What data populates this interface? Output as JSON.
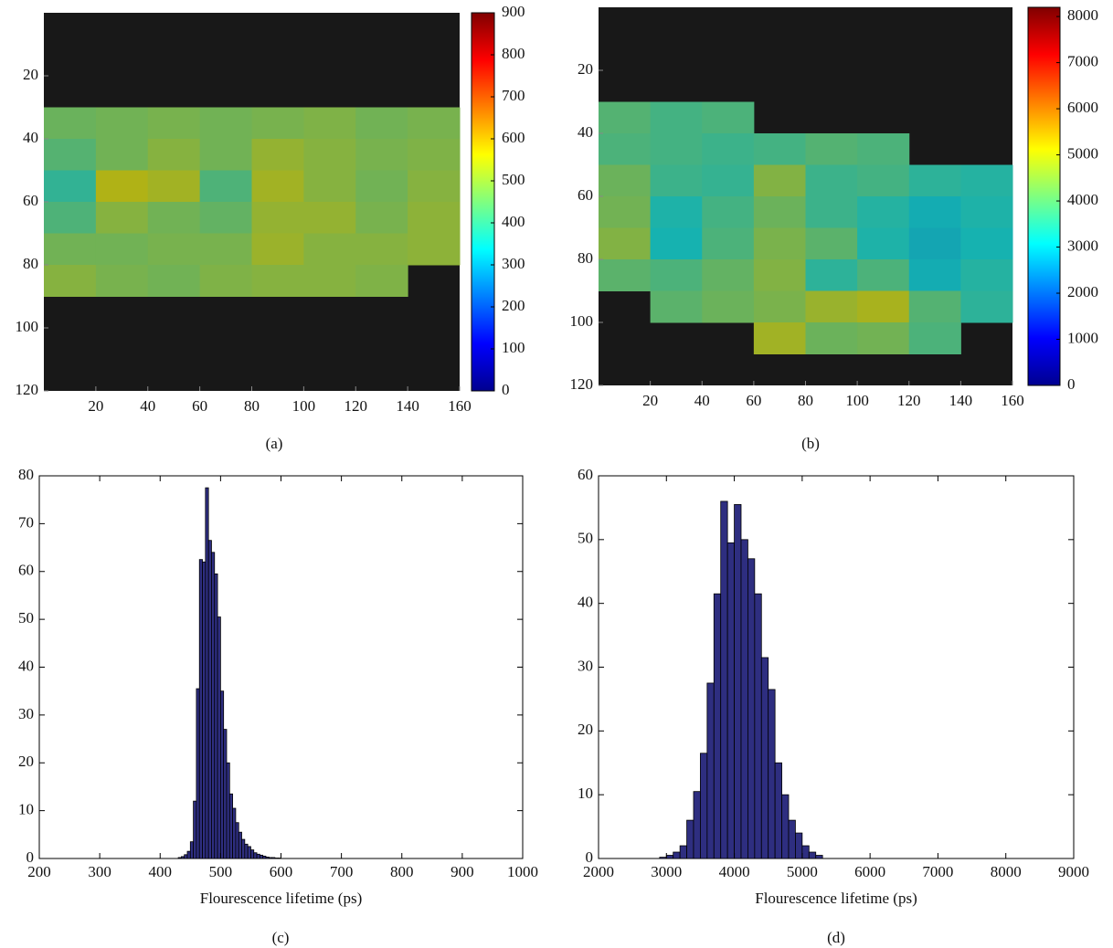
{
  "chart_data": [
    {
      "type": "heatmap",
      "caption": "(a)",
      "xbins": [
        0,
        20,
        40,
        60,
        80,
        100,
        120,
        140,
        160
      ],
      "ybins": [
        0,
        10,
        20,
        30,
        40,
        50,
        60,
        70,
        80,
        90,
        100,
        110,
        120
      ],
      "z": [
        [
          null,
          null,
          null,
          null,
          null,
          null,
          null,
          null
        ],
        [
          null,
          null,
          null,
          null,
          null,
          null,
          null,
          null
        ],
        [
          null,
          null,
          null,
          null,
          null,
          null,
          null,
          null
        ],
        [
          460,
          470,
          480,
          470,
          480,
          490,
          470,
          480
        ],
        [
          430,
          470,
          500,
          470,
          520,
          500,
          480,
          490
        ],
        [
          380,
          560,
          540,
          420,
          540,
          500,
          470,
          500
        ],
        [
          420,
          500,
          470,
          450,
          520,
          520,
          480,
          510
        ],
        [
          470,
          470,
          480,
          480,
          530,
          500,
          500,
          510
        ],
        [
          500,
          480,
          470,
          490,
          500,
          500,
          490,
          null
        ],
        [
          null,
          null,
          null,
          null,
          null,
          null,
          null,
          null
        ],
        [
          null,
          null,
          null,
          null,
          null,
          null,
          null,
          null
        ],
        [
          null,
          null,
          null,
          null,
          null,
          null,
          null,
          null
        ]
      ],
      "xlim": [
        0,
        160
      ],
      "xticks": [
        20,
        40,
        60,
        80,
        100,
        120,
        140,
        160
      ],
      "ylim": [
        0,
        120
      ],
      "yticks": [
        20,
        40,
        60,
        80,
        100,
        120
      ],
      "yreverse": true,
      "clim": [
        0,
        900
      ],
      "cticks": [
        0,
        100,
        200,
        300,
        400,
        500,
        600,
        700,
        800,
        900
      ],
      "colormap": "jet"
    },
    {
      "type": "heatmap",
      "caption": "(b)",
      "xbins": [
        0,
        20,
        40,
        60,
        80,
        100,
        120,
        140,
        160
      ],
      "ybins": [
        0,
        10,
        20,
        30,
        40,
        50,
        60,
        70,
        80,
        90,
        100,
        110,
        120
      ],
      "z": [
        [
          null,
          null,
          null,
          null,
          null,
          null,
          null,
          null
        ],
        [
          null,
          null,
          null,
          null,
          null,
          null,
          null,
          null
        ],
        [
          null,
          null,
          null,
          null,
          null,
          null,
          null,
          null
        ],
        [
          3900,
          3700,
          3800,
          null,
          null,
          null,
          null,
          null
        ],
        [
          3800,
          3700,
          3600,
          3700,
          3900,
          3800,
          null,
          null
        ],
        [
          4200,
          3600,
          3500,
          4500,
          3600,
          3700,
          3400,
          3300
        ],
        [
          4300,
          3200,
          3700,
          4200,
          3600,
          3300,
          3000,
          3200
        ],
        [
          4500,
          3100,
          3800,
          4400,
          4000,
          3200,
          2900,
          3100
        ],
        [
          4000,
          3800,
          4100,
          4500,
          3400,
          3800,
          3000,
          3300
        ],
        [
          null,
          4000,
          4200,
          4400,
          4800,
          5000,
          3900,
          3400
        ],
        [
          null,
          null,
          null,
          4900,
          4200,
          4300,
          3800,
          null
        ],
        [
          null,
          null,
          null,
          null,
          null,
          null,
          null,
          null
        ]
      ],
      "xlim": [
        0,
        160
      ],
      "xticks": [
        20,
        40,
        60,
        80,
        100,
        120,
        140,
        160
      ],
      "ylim": [
        0,
        120
      ],
      "yticks": [
        20,
        40,
        60,
        80,
        100,
        120
      ],
      "yreverse": true,
      "clim": [
        0,
        8200
      ],
      "cticks": [
        0,
        1000,
        2000,
        3000,
        4000,
        5000,
        6000,
        7000,
        8000
      ],
      "colormap": "jet"
    },
    {
      "type": "histogram",
      "caption": "(c)",
      "xlabel": "Flourescence lifetime (ps)",
      "color": "#2e2e80",
      "bins": [
        430,
        435,
        440,
        445,
        450,
        455,
        460,
        465,
        470,
        475,
        480,
        485,
        490,
        495,
        500,
        505,
        510,
        515,
        520,
        525,
        530,
        535,
        540,
        545,
        550,
        555,
        560,
        565,
        570,
        575,
        580,
        585,
        590,
        595,
        600
      ],
      "values": [
        0.2,
        0.4,
        0.8,
        1.5,
        3.5,
        12,
        35.5,
        62.5,
        62,
        77.5,
        66.5,
        64,
        59.5,
        50.5,
        35,
        27,
        20,
        13.5,
        10.5,
        7.5,
        5.5,
        4,
        3,
        2.5,
        1.8,
        1.2,
        0.9,
        0.7,
        0.5,
        0.3,
        0.2,
        0.2,
        0.1,
        0.1
      ],
      "xlim": [
        200,
        1000
      ],
      "xticks": [
        200,
        300,
        400,
        500,
        600,
        700,
        800,
        900,
        1000
      ],
      "ylim": [
        0,
        80
      ],
      "yticks": [
        0,
        10,
        20,
        30,
        40,
        50,
        60,
        70,
        80
      ]
    },
    {
      "type": "histogram",
      "caption": "(d)",
      "xlabel": "Flourescence lifetime (ps)",
      "color": "#2e2e80",
      "bins": [
        2900,
        3000,
        3100,
        3200,
        3300,
        3400,
        3500,
        3600,
        3700,
        3800,
        3900,
        4000,
        4100,
        4200,
        4300,
        4400,
        4500,
        4600,
        4700,
        4800,
        4900,
        5000,
        5100,
        5200,
        5300
      ],
      "values": [
        0.2,
        0.5,
        1,
        2,
        6,
        10.5,
        16.5,
        27.5,
        41.5,
        56,
        49.5,
        55.5,
        50,
        47,
        41.5,
        31.5,
        26.5,
        15,
        10,
        6,
        4,
        2,
        1,
        0.5
      ],
      "xlim": [
        2000,
        9000
      ],
      "xticks": [
        2000,
        3000,
        4000,
        5000,
        6000,
        7000,
        8000,
        9000
      ],
      "ylim": [
        0,
        60
      ],
      "yticks": [
        0,
        10,
        20,
        30,
        40,
        50,
        60
      ]
    }
  ]
}
